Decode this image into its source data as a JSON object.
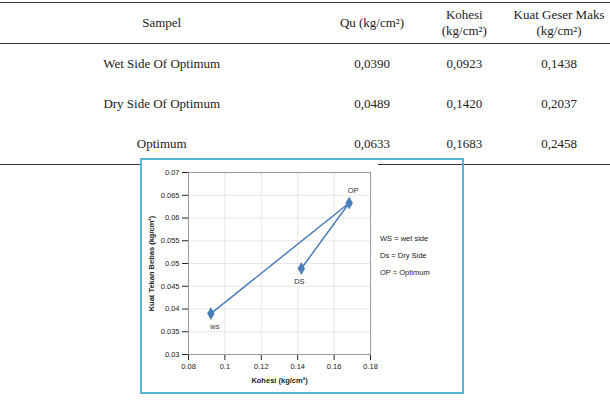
{
  "table": {
    "header": [
      "Sampel",
      "Qu (kg/cm²)",
      "Kohesi (kg/cm²)",
      "Kuat Geser Maks (kg/cm²)"
    ],
    "rows": [
      [
        "Wet Side Of Optimum",
        "0,0390",
        "0,0923",
        "0,1438"
      ],
      [
        "Dry Side Of Optimum",
        "0,0489",
        "0,1420",
        "0,2037"
      ],
      [
        "Optimum",
        "0,0633",
        "0,1683",
        "0,2458"
      ]
    ]
  },
  "chart_data": {
    "type": "line",
    "x_label": "Kohesi (kg/cm²)",
    "y_label": "Kuat Tekan Bebas (kg/cm²)",
    "x": [
      0.0923,
      0.1683,
      0.142
    ],
    "values": [
      0.039,
      0.0633,
      0.0489
    ],
    "color": "#4a7ebb",
    "marker": "diamond",
    "xlim": [
      0.08,
      0.18
    ],
    "xticks": [
      0.08,
      0.1,
      0.12,
      0.14,
      0.16,
      0.18
    ],
    "ylim": [
      0.03,
      0.07
    ],
    "yticks": [
      0.03,
      0.035,
      0.04,
      0.045,
      0.05,
      0.055,
      0.06,
      0.065,
      0.07
    ],
    "grid": true,
    "annotations": {
      "points": [
        "ws",
        "OP",
        "DS"
      ],
      "key": [
        "WS = wet side",
        "Ds = Dry Side",
        "OP = Optimum"
      ]
    }
  }
}
